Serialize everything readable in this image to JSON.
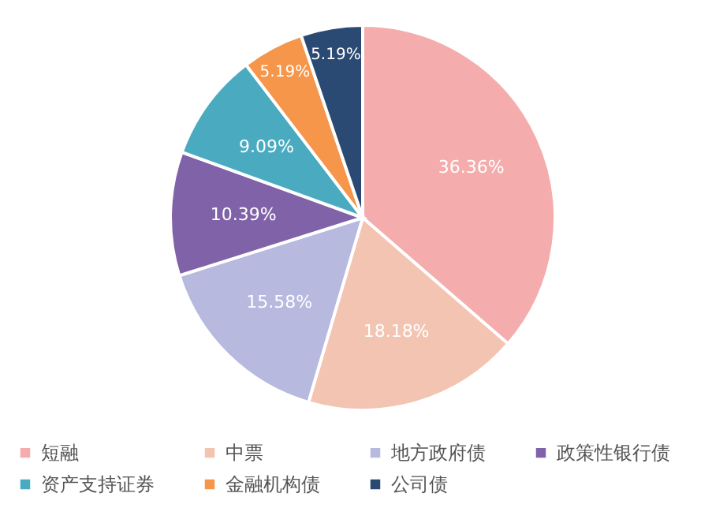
{
  "chart_data": {
    "type": "pie",
    "categories": [
      "短融",
      "中票",
      "地方政府债",
      "政策性银行债",
      "资产支持证券",
      "金融机构债",
      "公司债"
    ],
    "values": [
      36.36,
      18.18,
      15.58,
      10.39,
      9.09,
      5.19,
      5.19
    ],
    "value_labels": [
      "36.36%",
      "18.18%",
      "15.58%",
      "10.39%",
      "9.09%",
      "5.19%",
      "5.19%"
    ],
    "colors": [
      "#f4acac",
      "#f3c4b1",
      "#b7b9df",
      "#8062a8",
      "#4aabc0",
      "#f5964b",
      "#2a4a74"
    ],
    "legend": "bottom"
  }
}
